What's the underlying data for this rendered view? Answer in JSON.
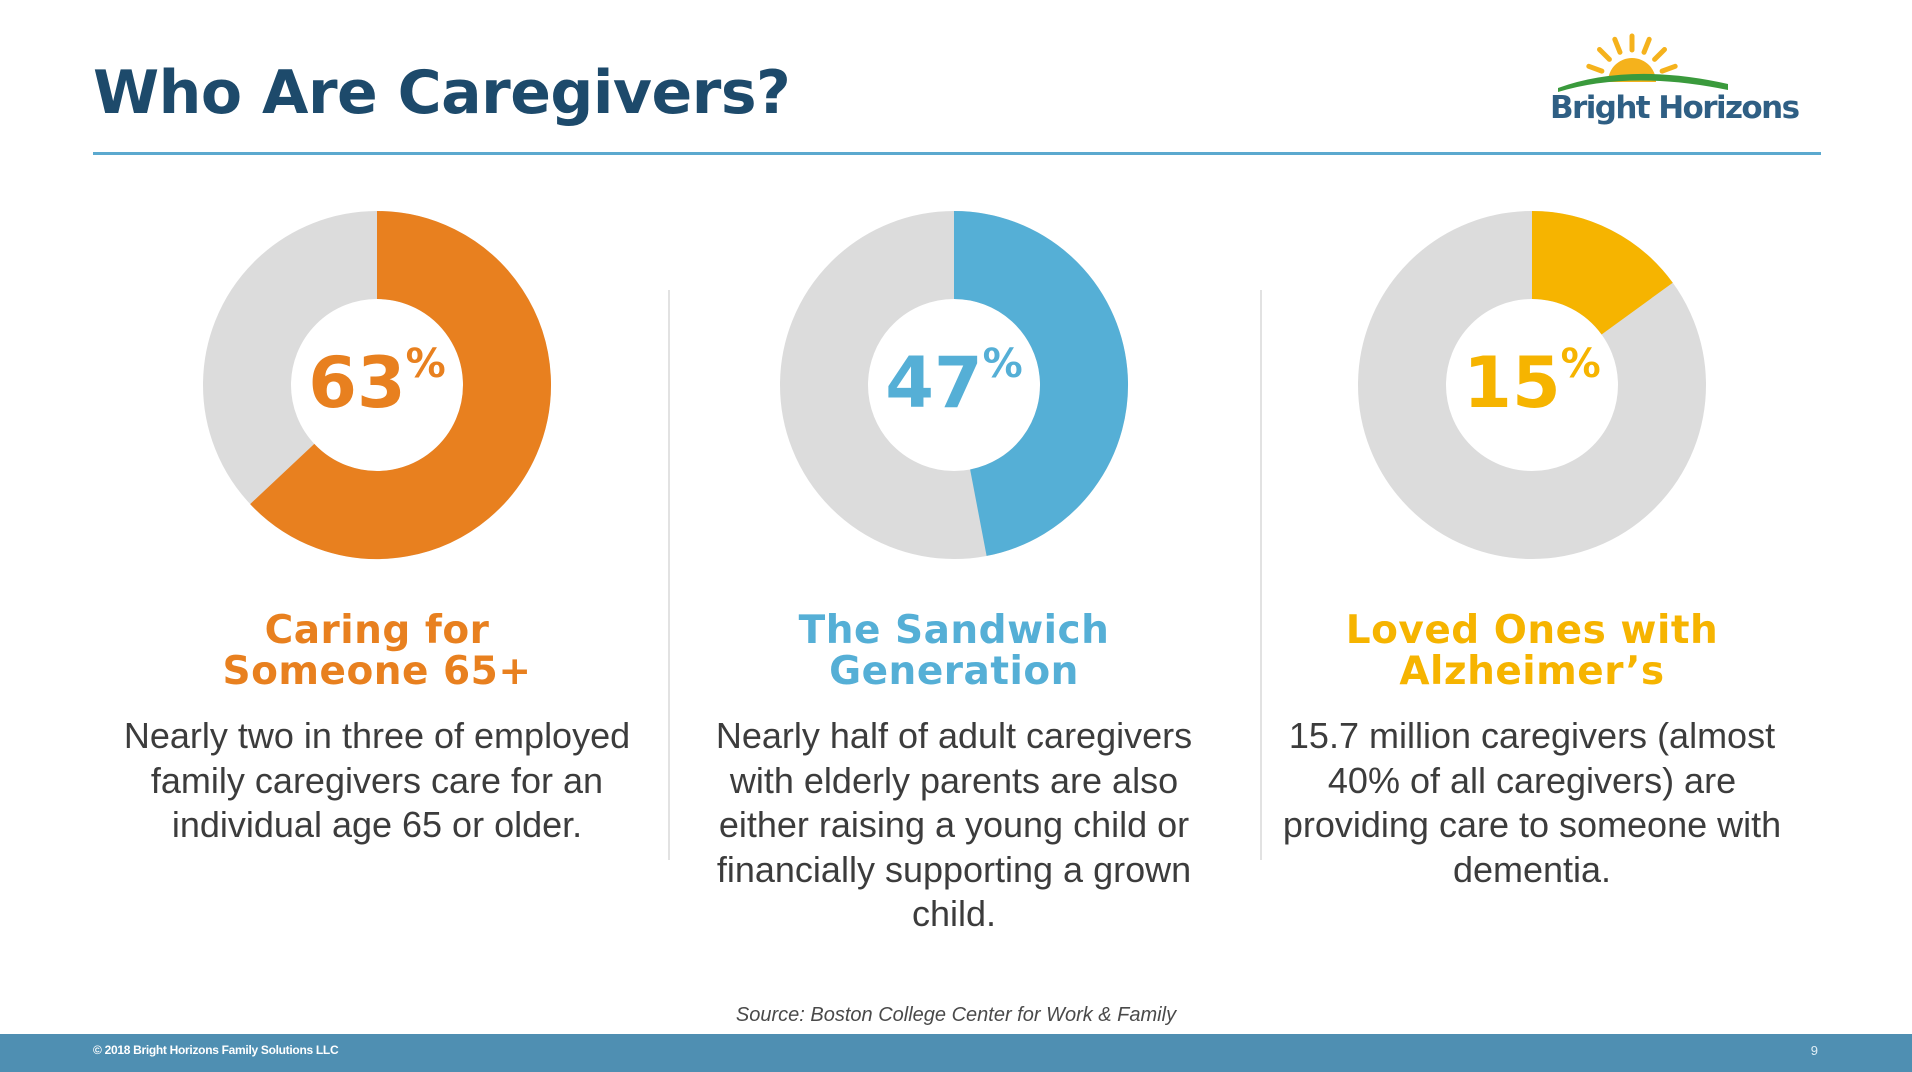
{
  "slide": {
    "title": "Who Are Caregivers?",
    "logo_text": "Bright Horizons",
    "source": "Source: Boston College Center for Work & Family",
    "copyright": "© 2018 Bright Horizons Family Solutions LLC",
    "page_number": "9"
  },
  "colors": {
    "title": "#1d4a6b",
    "rule": "#5ba9cf",
    "track": "#dcdcdc",
    "orange": "#e8801f",
    "blue": "#55afd6",
    "gold": "#f6b400",
    "footer": "#4f8fb2",
    "logo_sun": "#f5b21c",
    "logo_green": "#3a9a3c"
  },
  "chart_data": [
    {
      "type": "pie",
      "style": "donut",
      "value": 63,
      "value_label": "63",
      "unit": "%",
      "color": "#e8801f",
      "heading": [
        "Caring for",
        "Someone 65+"
      ],
      "description": "Nearly two in three of employed family caregivers care for an individual age 65 or older."
    },
    {
      "type": "pie",
      "style": "donut",
      "value": 47,
      "value_label": "47",
      "unit": "%",
      "color": "#55afd6",
      "heading": [
        "The Sandwich",
        "Generation"
      ],
      "description": "Nearly half of adult caregivers with elderly parents are also either raising a young child or financially supporting a grown child."
    },
    {
      "type": "pie",
      "style": "donut",
      "value": 15,
      "value_label": "15",
      "unit": "%",
      "color": "#f6b400",
      "heading": [
        "Loved Ones with",
        "Alzheimer’s"
      ],
      "description": "15.7 million caregivers (almost 40% of all caregivers) are providing care to someone with dementia."
    }
  ]
}
